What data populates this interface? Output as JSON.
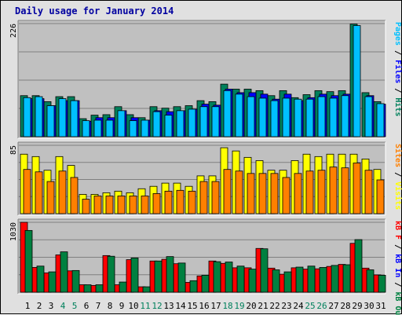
{
  "title": "Daily usage for January 2014",
  "colors": {
    "hits": "#00805c",
    "files": "#0000ff",
    "pages": "#00c0ff",
    "visits": "#ffff00",
    "sites": "#ff8000",
    "kb_in": "#0000ff",
    "kb_out": "#008040",
    "kb_f": "#ff0000",
    "weekend_label": "#00805c",
    "weekday_label": "#000000",
    "panel_bg": "#c0c0c0",
    "frame_bg": "#e0e0e0"
  },
  "chart_data": [
    {
      "type": "bar",
      "ylabel_parts": [
        {
          "text": "Pages",
          "color": "#00c0ff"
        },
        {
          "text": " / ",
          "color": "#000000"
        },
        {
          "text": "Files",
          "color": "#0000ff"
        },
        {
          "text": " / ",
          "color": "#000000"
        },
        {
          "text": "Hits",
          "color": "#00805c"
        }
      ],
      "ymax_label": "226",
      "ylim": [
        0,
        226
      ],
      "categories": [
        "1",
        "2",
        "3",
        "4",
        "5",
        "6",
        "7",
        "8",
        "9",
        "10",
        "11",
        "12",
        "13",
        "14",
        "15",
        "16",
        "17",
        "18",
        "19",
        "20",
        "21",
        "22",
        "23",
        "24",
        "25",
        "26",
        "27",
        "28",
        "29",
        "30",
        "31"
      ],
      "series": [
        {
          "name": "Hits",
          "color": "#00805c",
          "values": [
            82,
            82,
            70,
            80,
            80,
            36,
            43,
            44,
            60,
            44,
            38,
            60,
            57,
            60,
            62,
            72,
            70,
            105,
            95,
            95,
            92,
            82,
            92,
            78,
            84,
            92,
            90,
            92,
            225,
            88,
            70
          ]
        },
        {
          "name": "Files",
          "color": "#0000ff",
          "values": [
            76,
            76,
            62,
            72,
            72,
            31,
            38,
            38,
            52,
            38,
            33,
            52,
            50,
            52,
            55,
            65,
            63,
            95,
            88,
            88,
            85,
            75,
            85,
            72,
            78,
            85,
            82,
            85,
            0,
            82,
            65
          ]
        },
        {
          "name": "Pages",
          "color": "#00c0ff",
          "values": [
            78,
            80,
            62,
            76,
            72,
            32,
            33,
            33,
            52,
            32,
            33,
            50,
            43,
            52,
            55,
            60,
            60,
            92,
            85,
            80,
            77,
            72,
            77,
            75,
            75,
            80,
            77,
            82,
            222,
            80,
            66
          ]
        }
      ]
    },
    {
      "type": "bar",
      "ylabel_parts": [
        {
          "text": "Sites",
          "color": "#ff8000"
        },
        {
          "text": " / ",
          "color": "#000000"
        },
        {
          "text": "Visits",
          "color": "#ffff00"
        }
      ],
      "ymax_label": "85",
      "ylim": [
        0,
        85
      ],
      "categories": [
        "1",
        "2",
        "3",
        "4",
        "5",
        "6",
        "7",
        "8",
        "9",
        "10",
        "11",
        "12",
        "13",
        "14",
        "15",
        "16",
        "17",
        "18",
        "19",
        "20",
        "21",
        "22",
        "23",
        "24",
        "25",
        "26",
        "27",
        "28",
        "29",
        "30",
        "31"
      ],
      "series": [
        {
          "name": "Visits",
          "color": "#ffff00",
          "values": [
            74,
            71,
            54,
            71,
            60,
            24,
            24,
            26,
            28,
            26,
            31,
            34,
            38,
            38,
            34,
            47,
            47,
            82,
            78,
            70,
            66,
            54,
            54,
            66,
            74,
            71,
            74,
            74,
            74,
            68,
            55
          ]
        },
        {
          "name": "Sites",
          "color": "#ff8000",
          "values": [
            55,
            52,
            40,
            53,
            45,
            18,
            22,
            22,
            22,
            22,
            22,
            25,
            28,
            29,
            28,
            40,
            40,
            55,
            53,
            50,
            50,
            50,
            45,
            50,
            53,
            54,
            58,
            57,
            63,
            54,
            42
          ]
        }
      ]
    },
    {
      "type": "bar",
      "ylabel_parts": [
        {
          "text": "kB F",
          "color": "#ff0000"
        },
        {
          "text": " / ",
          "color": "#000000"
        },
        {
          "text": "kB In",
          "color": "#0000ff"
        },
        {
          "text": " / ",
          "color": "#000000"
        },
        {
          "text": "kB Out",
          "color": "#008040"
        }
      ],
      "ymax_label": "1030",
      "ylim": [
        0,
        1030
      ],
      "categories": [
        "1",
        "2",
        "3",
        "4",
        "5",
        "6",
        "7",
        "8",
        "9",
        "10",
        "11",
        "12",
        "13",
        "14",
        "15",
        "16",
        "17",
        "18",
        "19",
        "20",
        "21",
        "22",
        "23",
        "24",
        "25",
        "26",
        "27",
        "28",
        "29",
        "30",
        "31"
      ],
      "series": [
        {
          "name": "kB F",
          "color": "#ff0000",
          "values": [
            1030,
            365,
            285,
            550,
            315,
            110,
            100,
            540,
            110,
            480,
            80,
            460,
            485,
            420,
            145,
            240,
            460,
            425,
            360,
            360,
            645,
            355,
            265,
            360,
            340,
            345,
            380,
            410,
            720,
            355,
            255
          ]
        },
        {
          "name": "kB Out",
          "color": "#008040",
          "values": [
            910,
            385,
            300,
            595,
            320,
            110,
            110,
            530,
            150,
            505,
            80,
            460,
            525,
            430,
            170,
            250,
            450,
            445,
            385,
            340,
            640,
            330,
            300,
            370,
            385,
            365,
            395,
            405,
            775,
            330,
            250
          ]
        }
      ]
    }
  ],
  "x_labels": [
    {
      "text": "1",
      "weekend": false
    },
    {
      "text": "2",
      "weekend": false
    },
    {
      "text": "3",
      "weekend": false
    },
    {
      "text": "4",
      "weekend": true
    },
    {
      "text": "5",
      "weekend": true
    },
    {
      "text": "6",
      "weekend": false
    },
    {
      "text": "7",
      "weekend": false
    },
    {
      "text": "8",
      "weekend": false
    },
    {
      "text": "9",
      "weekend": false
    },
    {
      "text": "10",
      "weekend": false
    },
    {
      "text": "11",
      "weekend": true
    },
    {
      "text": "12",
      "weekend": true
    },
    {
      "text": "13",
      "weekend": false
    },
    {
      "text": "14",
      "weekend": false
    },
    {
      "text": "15",
      "weekend": false
    },
    {
      "text": "16",
      "weekend": false
    },
    {
      "text": "17",
      "weekend": false
    },
    {
      "text": "18",
      "weekend": true
    },
    {
      "text": "19",
      "weekend": true
    },
    {
      "text": "20",
      "weekend": false
    },
    {
      "text": "21",
      "weekend": false
    },
    {
      "text": "22",
      "weekend": false
    },
    {
      "text": "23",
      "weekend": false
    },
    {
      "text": "24",
      "weekend": false
    },
    {
      "text": "25",
      "weekend": true
    },
    {
      "text": "26",
      "weekend": true
    },
    {
      "text": "27",
      "weekend": false
    },
    {
      "text": "28",
      "weekend": false
    },
    {
      "text": "29",
      "weekend": false
    },
    {
      "text": "30",
      "weekend": false
    },
    {
      "text": "31",
      "weekend": false
    }
  ]
}
